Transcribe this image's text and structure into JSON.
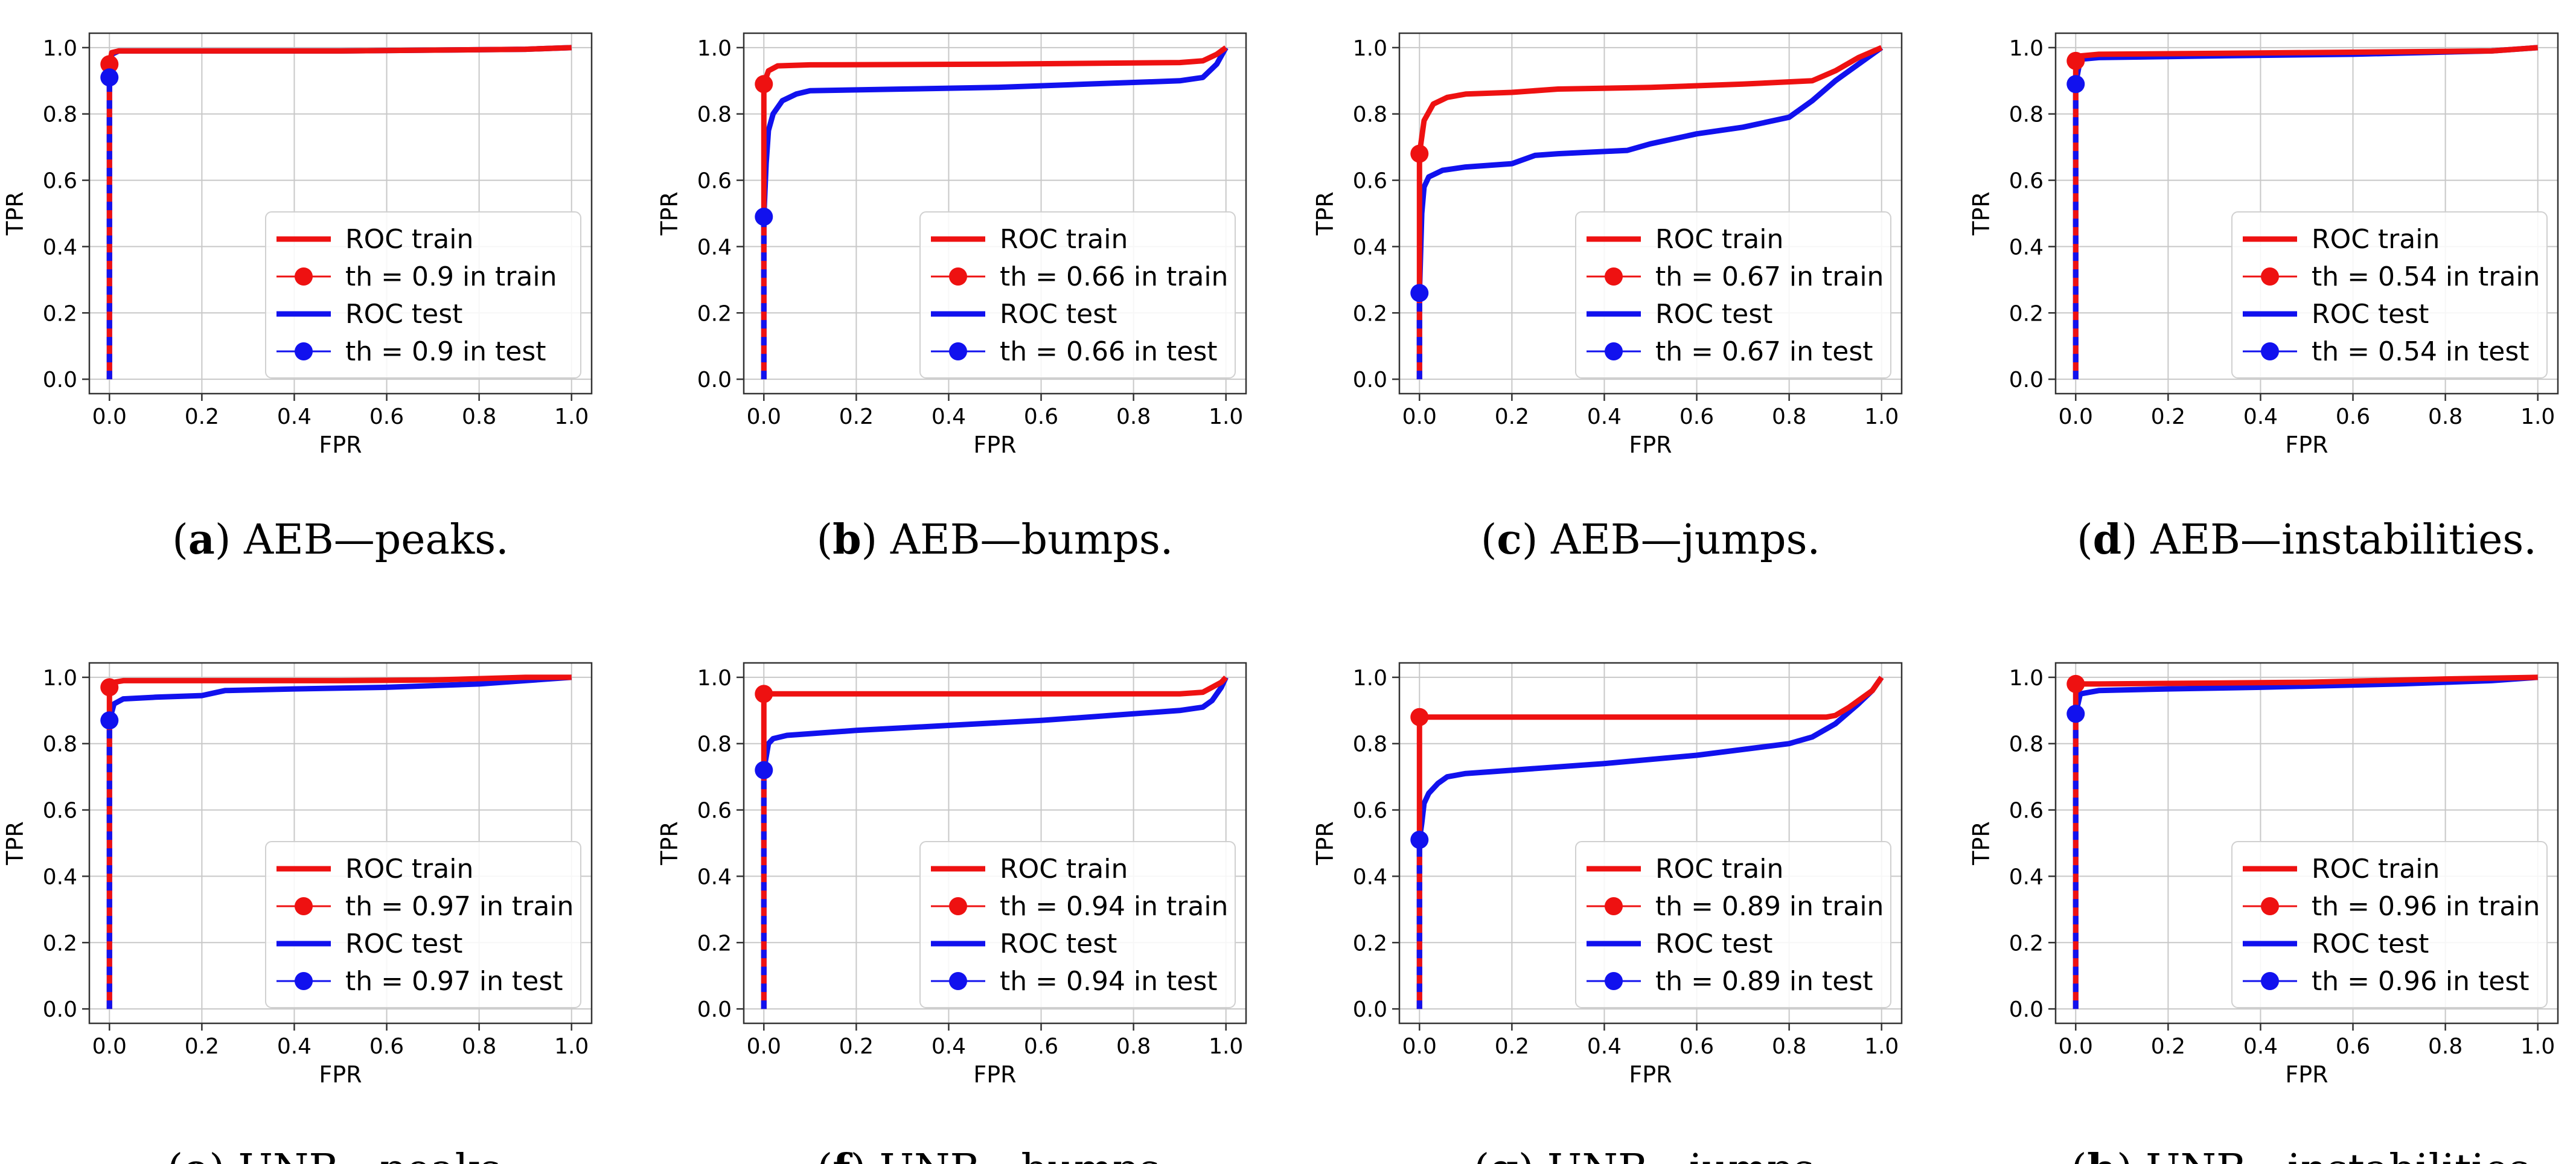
{
  "figure": {
    "colors": {
      "train": "#ee1111",
      "test": "#1111ee",
      "grid": "#c8c8c8",
      "axis": "#333333"
    },
    "icons": {
      "train_marker": "red-circle-marker",
      "test_marker": "blue-circle-marker"
    }
  },
  "chart_data": [
    {
      "type": "line",
      "panel": "a",
      "caption_label": "a",
      "caption_text": "AEB—peaks.",
      "xlabel": "FPR",
      "ylabel": "TPR",
      "xlim": [
        0,
        1
      ],
      "ylim": [
        0,
        1
      ],
      "grid": true,
      "xticks": [
        "0.0",
        "0.2",
        "0.4",
        "0.6",
        "0.8",
        "1.0"
      ],
      "yticks": [
        "0.0",
        "0.2",
        "0.4",
        "0.6",
        "0.8",
        "1.0"
      ],
      "legend_position": "lower-right",
      "legend": [
        "ROC train",
        "th = 0.9 in train",
        "ROC test",
        "th = 0.9 in test"
      ],
      "series": [
        {
          "name": "ROC train",
          "x": [
            0,
            0,
            0.005,
            0.02,
            0.5,
            0.9,
            1.0
          ],
          "y": [
            0,
            0.95,
            0.985,
            0.99,
            0.99,
            0.995,
            1.0
          ]
        },
        {
          "name": "ROC test",
          "x": [
            0,
            0,
            0.005,
            0.02,
            0.5,
            0.9,
            1.0
          ],
          "y": [
            0,
            0.91,
            0.98,
            0.99,
            0.99,
            0.995,
            1.0
          ]
        }
      ],
      "points": [
        {
          "name": "th = 0.9 in train",
          "threshold": 0.9,
          "x": 0.0,
          "y": 0.95
        },
        {
          "name": "th = 0.9 in test",
          "threshold": 0.9,
          "x": 0.0,
          "y": 0.91
        }
      ]
    },
    {
      "type": "line",
      "panel": "b",
      "caption_label": "b",
      "caption_text": "AEB—bumps.",
      "xlabel": "FPR",
      "ylabel": "TPR",
      "xlim": [
        0,
        1
      ],
      "ylim": [
        0,
        1
      ],
      "grid": true,
      "xticks": [
        "0.0",
        "0.2",
        "0.4",
        "0.6",
        "0.8",
        "1.0"
      ],
      "yticks": [
        "0.0",
        "0.2",
        "0.4",
        "0.6",
        "0.8",
        "1.0"
      ],
      "legend_position": "lower-right",
      "legend": [
        "ROC train",
        "th = 0.66 in train",
        "ROC test",
        "th = 0.66 in test"
      ],
      "series": [
        {
          "name": "ROC train",
          "x": [
            0,
            0,
            0.01,
            0.03,
            0.1,
            0.5,
            0.9,
            0.95,
            0.98,
            1.0
          ],
          "y": [
            0,
            0.89,
            0.93,
            0.945,
            0.948,
            0.95,
            0.955,
            0.96,
            0.98,
            1.0
          ]
        },
        {
          "name": "ROC test",
          "x": [
            0,
            0,
            0.005,
            0.01,
            0.02,
            0.04,
            0.07,
            0.1,
            0.3,
            0.5,
            0.7,
            0.9,
            0.95,
            0.98,
            1.0
          ],
          "y": [
            0,
            0.49,
            0.65,
            0.75,
            0.8,
            0.84,
            0.86,
            0.87,
            0.875,
            0.88,
            0.89,
            0.9,
            0.91,
            0.95,
            1.0
          ]
        }
      ],
      "points": [
        {
          "name": "th = 0.66 in train",
          "threshold": 0.66,
          "x": 0.0,
          "y": 0.89
        },
        {
          "name": "th = 0.66 in test",
          "threshold": 0.66,
          "x": 0.0,
          "y": 0.49
        }
      ]
    },
    {
      "type": "line",
      "panel": "c",
      "caption_label": "c",
      "caption_text": "AEB—jumps.",
      "xlabel": "FPR",
      "ylabel": "TPR",
      "xlim": [
        0,
        1
      ],
      "ylim": [
        0,
        1
      ],
      "grid": true,
      "xticks": [
        "0.0",
        "0.2",
        "0.4",
        "0.6",
        "0.8",
        "1.0"
      ],
      "yticks": [
        "0.0",
        "0.2",
        "0.4",
        "0.6",
        "0.8",
        "1.0"
      ],
      "legend_position": "lower-right",
      "legend": [
        "ROC train",
        "th = 0.67 in train",
        "ROC test",
        "th = 0.67 in test"
      ],
      "series": [
        {
          "name": "ROC train",
          "x": [
            0,
            0,
            0.01,
            0.03,
            0.06,
            0.1,
            0.2,
            0.3,
            0.5,
            0.7,
            0.85,
            0.9,
            0.95,
            1.0
          ],
          "y": [
            0,
            0.68,
            0.78,
            0.83,
            0.85,
            0.86,
            0.865,
            0.875,
            0.88,
            0.89,
            0.9,
            0.93,
            0.97,
            1.0
          ]
        },
        {
          "name": "ROC test",
          "x": [
            0,
            0,
            0.005,
            0.01,
            0.02,
            0.05,
            0.1,
            0.15,
            0.2,
            0.25,
            0.3,
            0.45,
            0.5,
            0.6,
            0.7,
            0.8,
            0.85,
            0.9,
            0.95,
            1.0
          ],
          "y": [
            0,
            0.26,
            0.5,
            0.58,
            0.61,
            0.63,
            0.64,
            0.645,
            0.65,
            0.675,
            0.68,
            0.69,
            0.71,
            0.74,
            0.76,
            0.79,
            0.84,
            0.9,
            0.95,
            1.0
          ]
        }
      ],
      "points": [
        {
          "name": "th = 0.67 in train",
          "threshold": 0.67,
          "x": 0.0,
          "y": 0.68
        },
        {
          "name": "th = 0.67 in test",
          "threshold": 0.67,
          "x": 0.0,
          "y": 0.26
        }
      ]
    },
    {
      "type": "line",
      "panel": "d",
      "caption_label": "d",
      "caption_text": "AEB—instabilities.",
      "xlabel": "FPR",
      "ylabel": "TPR",
      "xlim": [
        0,
        1
      ],
      "ylim": [
        0,
        1
      ],
      "grid": true,
      "xticks": [
        "0.0",
        "0.2",
        "0.4",
        "0.6",
        "0.8",
        "1.0"
      ],
      "yticks": [
        "0.0",
        "0.2",
        "0.4",
        "0.6",
        "0.8",
        "1.0"
      ],
      "legend_position": "lower-right",
      "legend": [
        "ROC train",
        "th = 0.54 in train",
        "ROC test",
        "th = 0.54 in test"
      ],
      "series": [
        {
          "name": "ROC train",
          "x": [
            0,
            0,
            0.01,
            0.05,
            0.5,
            0.9,
            1.0
          ],
          "y": [
            0,
            0.96,
            0.975,
            0.98,
            0.985,
            0.99,
            1.0
          ]
        },
        {
          "name": "ROC test",
          "x": [
            0,
            0,
            0.01,
            0.05,
            0.3,
            0.6,
            0.9,
            1.0
          ],
          "y": [
            0,
            0.89,
            0.965,
            0.97,
            0.975,
            0.98,
            0.99,
            1.0
          ]
        }
      ],
      "points": [
        {
          "name": "th = 0.54 in train",
          "threshold": 0.54,
          "x": 0.0,
          "y": 0.96
        },
        {
          "name": "th = 0.54 in test",
          "threshold": 0.54,
          "x": 0.0,
          "y": 0.89
        }
      ]
    },
    {
      "type": "line",
      "panel": "e",
      "caption_label": "e",
      "caption_text": "UNB—peaks.",
      "xlabel": "FPR",
      "ylabel": "TPR",
      "xlim": [
        0,
        1
      ],
      "ylim": [
        0,
        1
      ],
      "grid": true,
      "xticks": [
        "0.0",
        "0.2",
        "0.4",
        "0.6",
        "0.8",
        "1.0"
      ],
      "yticks": [
        "0.0",
        "0.2",
        "0.4",
        "0.6",
        "0.8",
        "1.0"
      ],
      "legend_position": "lower-right",
      "legend": [
        "ROC train",
        "th = 0.97 in train",
        "ROC test",
        "th = 0.97 in test"
      ],
      "series": [
        {
          "name": "ROC train",
          "x": [
            0,
            0,
            0.01,
            0.03,
            0.5,
            0.7,
            0.9,
            1.0
          ],
          "y": [
            0,
            0.97,
            0.985,
            0.99,
            0.99,
            0.992,
            1.0,
            1.0
          ]
        },
        {
          "name": "ROC test",
          "x": [
            0,
            0,
            0.01,
            0.03,
            0.1,
            0.2,
            0.25,
            0.4,
            0.6,
            0.8,
            0.9,
            1.0
          ],
          "y": [
            0,
            0.87,
            0.92,
            0.935,
            0.94,
            0.945,
            0.96,
            0.965,
            0.97,
            0.98,
            0.99,
            1.0
          ]
        }
      ],
      "points": [
        {
          "name": "th = 0.97 in train",
          "threshold": 0.97,
          "x": 0.0,
          "y": 0.97
        },
        {
          "name": "th = 0.97 in test",
          "threshold": 0.97,
          "x": 0.0,
          "y": 0.87
        }
      ]
    },
    {
      "type": "line",
      "panel": "f",
      "caption_label": "f",
      "caption_text": "UNB—bumps.",
      "xlabel": "FPR",
      "ylabel": "TPR",
      "xlim": [
        0,
        1
      ],
      "ylim": [
        0,
        1
      ],
      "grid": true,
      "xticks": [
        "0.0",
        "0.2",
        "0.4",
        "0.6",
        "0.8",
        "1.0"
      ],
      "yticks": [
        "0.0",
        "0.2",
        "0.4",
        "0.6",
        "0.8",
        "1.0"
      ],
      "legend_position": "lower-right",
      "legend": [
        "ROC train",
        "th = 0.94 in train",
        "ROC test",
        "th = 0.94 in test"
      ],
      "series": [
        {
          "name": "ROC train",
          "x": [
            0,
            0,
            0.005,
            0.9,
            0.95,
            0.97,
            0.99,
            1.0
          ],
          "y": [
            0,
            0.95,
            0.95,
            0.95,
            0.955,
            0.97,
            0.985,
            1.0
          ]
        },
        {
          "name": "ROC test",
          "x": [
            0,
            0,
            0.005,
            0.01,
            0.02,
            0.05,
            0.1,
            0.2,
            0.4,
            0.6,
            0.8,
            0.9,
            0.95,
            0.97,
            0.99,
            1.0
          ],
          "y": [
            0,
            0.72,
            0.76,
            0.8,
            0.815,
            0.825,
            0.83,
            0.84,
            0.855,
            0.87,
            0.89,
            0.9,
            0.91,
            0.93,
            0.97,
            1.0
          ]
        }
      ],
      "points": [
        {
          "name": "th = 0.94 in train",
          "threshold": 0.94,
          "x": 0.0,
          "y": 0.95
        },
        {
          "name": "th = 0.94 in test",
          "threshold": 0.94,
          "x": 0.0,
          "y": 0.72
        }
      ]
    },
    {
      "type": "line",
      "panel": "g",
      "caption_label": "g",
      "caption_text": "UNB—jumps.",
      "xlabel": "FPR",
      "ylabel": "TPR",
      "xlim": [
        0,
        1
      ],
      "ylim": [
        0,
        1
      ],
      "grid": true,
      "xticks": [
        "0.0",
        "0.2",
        "0.4",
        "0.6",
        "0.8",
        "1.0"
      ],
      "yticks": [
        "0.0",
        "0.2",
        "0.4",
        "0.6",
        "0.8",
        "1.0"
      ],
      "legend_position": "lower-right",
      "legend": [
        "ROC train",
        "th = 0.89 in train",
        "ROC test",
        "th = 0.89 in test"
      ],
      "series": [
        {
          "name": "ROC train",
          "x": [
            0,
            0,
            0.005,
            0.88,
            0.9,
            0.93,
            0.96,
            0.98,
            1.0
          ],
          "y": [
            0,
            0.88,
            0.88,
            0.88,
            0.885,
            0.91,
            0.94,
            0.96,
            1.0
          ]
        },
        {
          "name": "ROC test",
          "x": [
            0,
            0,
            0.005,
            0.01,
            0.02,
            0.04,
            0.06,
            0.1,
            0.2,
            0.4,
            0.6,
            0.8,
            0.85,
            0.9,
            0.95,
            0.98,
            1.0
          ],
          "y": [
            0,
            0.51,
            0.56,
            0.62,
            0.65,
            0.68,
            0.7,
            0.71,
            0.72,
            0.74,
            0.765,
            0.8,
            0.82,
            0.86,
            0.92,
            0.96,
            1.0
          ]
        }
      ],
      "points": [
        {
          "name": "th = 0.89 in train",
          "threshold": 0.89,
          "x": 0.0,
          "y": 0.88
        },
        {
          "name": "th = 0.89 in test",
          "threshold": 0.89,
          "x": 0.0,
          "y": 0.51
        }
      ]
    },
    {
      "type": "line",
      "panel": "h",
      "caption_label": "h",
      "caption_text": "UNB—instabilities.",
      "xlabel": "FPR",
      "ylabel": "TPR",
      "xlim": [
        0,
        1
      ],
      "ylim": [
        0,
        1
      ],
      "grid": true,
      "xticks": [
        "0.0",
        "0.2",
        "0.4",
        "0.6",
        "0.8",
        "1.0"
      ],
      "yticks": [
        "0.0",
        "0.2",
        "0.4",
        "0.6",
        "0.8",
        "1.0"
      ],
      "legend_position": "lower-right",
      "legend": [
        "ROC train",
        "th = 0.96 in train",
        "ROC test",
        "th = 0.96 in test"
      ],
      "series": [
        {
          "name": "ROC train",
          "x": [
            0,
            0,
            0.01,
            0.05,
            0.5,
            0.8,
            1.0
          ],
          "y": [
            0,
            0.98,
            0.98,
            0.98,
            0.985,
            0.995,
            1.0
          ]
        },
        {
          "name": "ROC test",
          "x": [
            0,
            0,
            0.01,
            0.05,
            0.2,
            0.4,
            0.7,
            0.9,
            1.0
          ],
          "y": [
            0,
            0.89,
            0.95,
            0.96,
            0.965,
            0.97,
            0.98,
            0.99,
            1.0
          ]
        }
      ],
      "points": [
        {
          "name": "th = 0.96 in train",
          "threshold": 0.96,
          "x": 0.0,
          "y": 0.98
        },
        {
          "name": "th = 0.96 in test",
          "threshold": 0.96,
          "x": 0.0,
          "y": 0.89
        }
      ]
    }
  ]
}
